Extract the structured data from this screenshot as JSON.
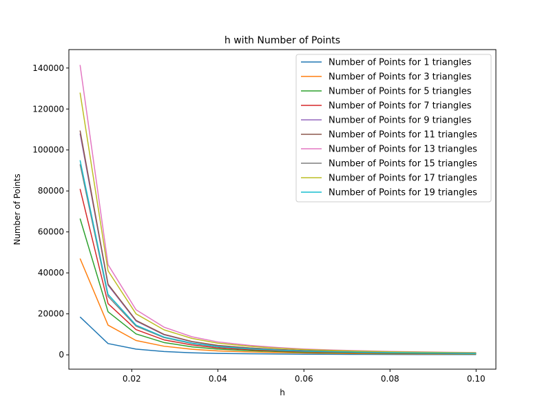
{
  "chart_data": {
    "type": "line",
    "title": "h with Number of Points",
    "xlabel": "h",
    "ylabel": "Number of Points",
    "xlim": [
      0.0054,
      0.1046
    ],
    "ylim": [
      -7000,
      149000
    ],
    "xticks": [
      {
        "value": 0.02,
        "label": "0.02"
      },
      {
        "value": 0.04,
        "label": "0.04"
      },
      {
        "value": 0.06,
        "label": "0.06"
      },
      {
        "value": 0.08,
        "label": "0.08"
      },
      {
        "value": 0.1,
        "label": "0.10"
      }
    ],
    "yticks": [
      {
        "value": 0,
        "label": "0"
      },
      {
        "value": 20000,
        "label": "20000"
      },
      {
        "value": 40000,
        "label": "40000"
      },
      {
        "value": 60000,
        "label": "60000"
      },
      {
        "value": 80000,
        "label": "80000"
      },
      {
        "value": 100000,
        "label": "100000"
      },
      {
        "value": 120000,
        "label": "120000"
      },
      {
        "value": 140000,
        "label": "140000"
      }
    ],
    "grid": false,
    "legend_position": "top-right",
    "x": [
      0.008,
      0.0145,
      0.021,
      0.0275,
      0.034,
      0.04,
      0.0475,
      0.054,
      0.06,
      0.067,
      0.074,
      0.08,
      0.087,
      0.094,
      0.1
    ],
    "series": [
      {
        "name": "Number of Points for 1 triangles",
        "color": "#1f77b4",
        "values": [
          18500,
          5500,
          2800,
          1600,
          1000,
          700,
          520,
          400,
          320,
          260,
          220,
          190,
          165,
          145,
          125
        ]
      },
      {
        "name": "Number of Points for 3 triangles",
        "color": "#ff7f0e",
        "values": [
          47000,
          14500,
          7000,
          4200,
          2700,
          1900,
          1400,
          1100,
          880,
          720,
          600,
          510,
          440,
          390,
          340
        ]
      },
      {
        "name": "Number of Points for 5 triangles",
        "color": "#2ca02c",
        "values": [
          66500,
          21000,
          10200,
          6000,
          3900,
          2800,
          2050,
          1600,
          1280,
          1050,
          880,
          750,
          650,
          570,
          500
        ]
      },
      {
        "name": "Number of Points for 7 triangles",
        "color": "#d62728",
        "values": [
          81000,
          25000,
          12300,
          7300,
          4800,
          3400,
          2500,
          1950,
          1560,
          1280,
          1070,
          910,
          790,
          690,
          610
        ]
      },
      {
        "name": "Number of Points for 9 triangles",
        "color": "#9467bd",
        "values": [
          108000,
          34000,
          16500,
          9800,
          6400,
          4500,
          3300,
          2550,
          2050,
          1680,
          1400,
          1190,
          1030,
          900,
          790
        ]
      },
      {
        "name": "Number of Points for 11 triangles",
        "color": "#8c564b",
        "values": [
          109500,
          34500,
          16800,
          10000,
          6500,
          4600,
          3350,
          2600,
          2080,
          1700,
          1420,
          1210,
          1040,
          910,
          800
        ]
      },
      {
        "name": "Number of Points for 13 triangles",
        "color": "#e377c2",
        "values": [
          141500,
          44000,
          22000,
          13500,
          8800,
          6300,
          4600,
          3550,
          2850,
          2330,
          1950,
          1660,
          1430,
          1250,
          1100
        ]
      },
      {
        "name": "Number of Points for 15 triangles",
        "color": "#7f7f7f",
        "values": [
          93000,
          28500,
          14000,
          8400,
          5500,
          3900,
          2850,
          2200,
          1770,
          1450,
          1210,
          1030,
          890,
          780,
          690
        ]
      },
      {
        "name": "Number of Points for 17 triangles",
        "color": "#bcbd22",
        "values": [
          128000,
          41000,
          20000,
          12200,
          8000,
          5700,
          4150,
          3200,
          2580,
          2110,
          1760,
          1500,
          1290,
          1130,
          1000
        ]
      },
      {
        "name": "Number of Points for 19 triangles",
        "color": "#17becf",
        "values": [
          95000,
          29500,
          14500,
          8700,
          5700,
          4050,
          2950,
          2280,
          1830,
          1500,
          1250,
          1070,
          920,
          810,
          710
        ]
      }
    ]
  }
}
